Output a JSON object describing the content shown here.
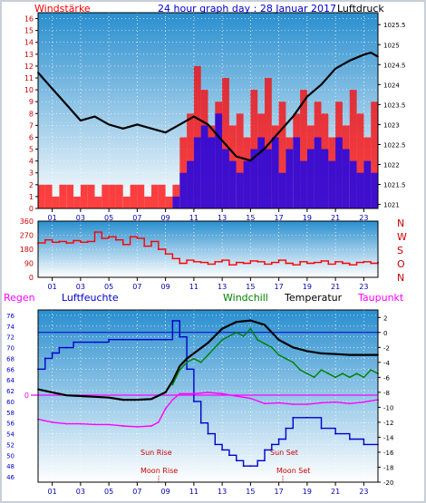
{
  "chart_data": [
    {
      "type": "line",
      "title": "24 hour graph day : 28 Januar 2017",
      "left_label": "Windstärke",
      "right_label": "Luftdruck",
      "x_ticks": [
        "01",
        "03",
        "05",
        "07",
        "09",
        "11",
        "13",
        "15",
        "17",
        "19",
        "21",
        "23"
      ],
      "y_left_ticks": [
        "0",
        "1",
        "2",
        "3",
        "4",
        "5",
        "6",
        "7",
        "8",
        "9",
        "10",
        "11",
        "12",
        "13",
        "14",
        "15",
        "16"
      ],
      "y_right_ticks": [
        "1021",
        "1021.5",
        "1022",
        "1022.5",
        "1023",
        "1023.5",
        "1024",
        "1024.5",
        "1025",
        "1025.5"
      ],
      "ylim_left": [
        0,
        16.5
      ],
      "ylim_right": [
        1020.9,
        1025.8
      ],
      "series": [
        {
          "name": "Windstärke",
          "color": "#ff0000",
          "x": [
            0,
            0.5,
            1,
            1.5,
            2,
            2.5,
            3,
            3.5,
            4,
            4.5,
            5,
            5.5,
            6,
            6.5,
            7,
            7.5,
            8,
            8.5,
            9,
            9.5,
            10,
            10.5,
            11,
            11.5,
            12,
            12.5,
            13,
            13.5,
            14,
            14.5,
            15,
            15.5,
            16,
            16.5,
            17,
            17.5,
            18,
            18.5,
            19,
            19.5,
            20,
            20.5,
            21,
            21.5,
            22,
            22.5,
            23,
            23.5,
            24
          ],
          "y": [
            2,
            2,
            1,
            2,
            2,
            1,
            2,
            2,
            1,
            2,
            2,
            2,
            1,
            2,
            2,
            1,
            2,
            2,
            1,
            2,
            6,
            8,
            12,
            10,
            7,
            9,
            11,
            7,
            8,
            6,
            10,
            8,
            11,
            7,
            9,
            6,
            8,
            10,
            7,
            9,
            8,
            6,
            9,
            7,
            10,
            8,
            6,
            9,
            8
          ]
        },
        {
          "name": "Wind Böen",
          "color": "#0000ff",
          "x": [
            9.5,
            10,
            10.5,
            11,
            11.5,
            12,
            12.5,
            13,
            13.5,
            14,
            14.5,
            15,
            15.5,
            16,
            16.5,
            17,
            17.5,
            18,
            18.5,
            19,
            19.5,
            20,
            20.5,
            21,
            21.5,
            22,
            22.5,
            23,
            23.5,
            24
          ],
          "y": [
            1,
            3,
            4,
            6,
            7,
            6,
            8,
            5,
            4,
            3,
            4,
            5,
            6,
            5,
            6,
            3,
            5,
            6,
            4,
            5,
            6,
            5,
            4,
            6,
            5,
            4,
            3,
            4,
            3,
            4
          ]
        },
        {
          "name": "Luftdruck",
          "color": "#000000",
          "axis": "right",
          "x": [
            0,
            1,
            2,
            3,
            4,
            5,
            6,
            7,
            8,
            9,
            10,
            11,
            12,
            13,
            14,
            15,
            16,
            17,
            18,
            19,
            20,
            21,
            22,
            23,
            23.5,
            24
          ],
          "y": [
            1024.3,
            1023.9,
            1023.5,
            1023.1,
            1023.2,
            1023.0,
            1022.9,
            1023.0,
            1022.9,
            1022.8,
            1023.0,
            1023.2,
            1023.0,
            1022.6,
            1022.2,
            1022.1,
            1022.4,
            1022.8,
            1023.2,
            1023.7,
            1024.0,
            1024.4,
            1024.6,
            1024.75,
            1024.8,
            1024.7
          ]
        }
      ]
    },
    {
      "type": "line",
      "title": "",
      "x_ticks": [
        "01",
        "03",
        "05",
        "07",
        "09",
        "11",
        "13",
        "15",
        "17",
        "19",
        "21",
        "23"
      ],
      "y_ticks": [
        "0",
        "90",
        "180",
        "270",
        "360"
      ],
      "direction_labels": [
        "N",
        "W",
        "S",
        "O",
        "N"
      ],
      "ylim": [
        0,
        360
      ],
      "series": [
        {
          "name": "Windrichtung",
          "color": "#ff0000",
          "x": [
            0,
            0.5,
            1,
            1.5,
            2,
            2.5,
            3,
            3.5,
            4,
            4.5,
            5,
            5.5,
            6,
            6.5,
            7,
            7.5,
            8,
            8.5,
            9,
            9.5,
            10,
            10.5,
            11,
            11.5,
            12,
            12.5,
            13,
            13.5,
            14,
            14.5,
            15,
            15.5,
            16,
            16.5,
            17,
            17.5,
            18,
            18.5,
            19,
            19.5,
            20,
            20.5,
            21,
            21.5,
            22,
            22.5,
            23,
            23.5,
            24
          ],
          "y": [
            220,
            240,
            225,
            230,
            220,
            235,
            225,
            230,
            290,
            250,
            260,
            240,
            210,
            260,
            250,
            200,
            230,
            180,
            150,
            120,
            90,
            110,
            100,
            95,
            85,
            100,
            110,
            80,
            95,
            90,
            105,
            100,
            85,
            95,
            110,
            90,
            80,
            100,
            90,
            95,
            105,
            85,
            100,
            90,
            80,
            95,
            100,
            90,
            95
          ]
        }
      ]
    },
    {
      "type": "line",
      "title": "",
      "legend": [
        "Regen",
        "Luftfeuchte",
        "Windchill",
        "Temperatur",
        "Taupunkt"
      ],
      "legend_colors": [
        "#ff00ff",
        "#0000cc",
        "#008000",
        "#000000",
        "#ff00ff"
      ],
      "x_ticks": [
        "01",
        "03",
        "05",
        "07",
        "09",
        "11",
        "13",
        "15",
        "17",
        "19",
        "21",
        "23"
      ],
      "y_left_ticks": [
        "46",
        "48",
        "50",
        "52",
        "54",
        "56",
        "58",
        "60",
        "62",
        "64",
        "66",
        "68",
        "70",
        "72",
        "74",
        "76"
      ],
      "y_right_ticks": [
        "2",
        "0",
        "-2",
        "-4",
        "-6",
        "-8",
        "-10",
        "-12",
        "-14",
        "-16",
        "-18",
        "-20"
      ],
      "rain_tick": "0",
      "ylim_left": [
        45,
        77
      ],
      "ylim_right": [
        -20,
        3
      ],
      "annotations": [
        "Sun Rise",
        "Moon Rise",
        "Sun Set",
        "Moon Set"
      ],
      "series": [
        {
          "name": "Luftfeuchte",
          "color": "#0000cc",
          "axis": "left",
          "x": [
            0,
            0.5,
            1,
            1.5,
            2,
            2.5,
            3,
            4,
            5,
            6,
            7,
            8,
            9,
            9.5,
            10,
            10.5,
            11,
            11.5,
            12,
            12.5,
            13,
            13.5,
            14,
            14.5,
            15,
            15.5,
            16,
            16.5,
            17,
            17.5,
            18,
            19,
            20,
            21,
            22,
            23,
            24
          ],
          "y": [
            66,
            68,
            69,
            70,
            70,
            71,
            71,
            71,
            71.5,
            71.5,
            71.5,
            71.5,
            71.5,
            75,
            72,
            66,
            60,
            56,
            54,
            52,
            51,
            50,
            49,
            48,
            48,
            49,
            51,
            52,
            53,
            55,
            57,
            57,
            55,
            54,
            53,
            52,
            52
          ]
        },
        {
          "name": "Temperatur",
          "color": "#000000",
          "axis": "right",
          "x": [
            0,
            1,
            2,
            3,
            4,
            5,
            6,
            7,
            8,
            9,
            9.5,
            10,
            10.5,
            11,
            12,
            13,
            14,
            15,
            16,
            17,
            18,
            19,
            20,
            21,
            22,
            23,
            24
          ],
          "y": [
            -7.6,
            -8,
            -8.4,
            -8.5,
            -8.6,
            -8.7,
            -9,
            -9,
            -8.9,
            -8,
            -6.5,
            -4.5,
            -3.5,
            -2.8,
            -1.4,
            0.5,
            1.4,
            1.6,
            1.0,
            -1.0,
            -2.0,
            -2.5,
            -2.8,
            -2.9,
            -3.0,
            -3.0,
            -3.0
          ]
        },
        {
          "name": "Windchill",
          "color": "#008000",
          "axis": "right",
          "x": [
            9.5,
            10,
            10.5,
            11,
            11.5,
            12,
            12.5,
            13,
            13.5,
            14,
            14.5,
            15,
            15.5,
            16,
            16.5,
            17,
            17.5,
            18,
            18.5,
            19,
            19.5,
            20,
            20.5,
            21,
            21.5,
            22,
            22.5,
            23,
            23.5,
            24
          ],
          "y": [
            -7,
            -5,
            -4,
            -3.5,
            -4,
            -3,
            -2,
            -1,
            -0.5,
            0,
            -0.5,
            0.5,
            -1,
            -1.5,
            -2,
            -3,
            -3.5,
            -4,
            -5,
            -5.5,
            -6,
            -5,
            -5.5,
            -6,
            -5.5,
            -6,
            -5.5,
            -6,
            -5,
            -5.5
          ]
        },
        {
          "name": "Taupunkt",
          "color": "#ff00ff",
          "axis": "right",
          "x": [
            0,
            1,
            2,
            3,
            4,
            5,
            6,
            7,
            8,
            8.5,
            9,
            9.5,
            10,
            11,
            12,
            13,
            14,
            15,
            16,
            17,
            18,
            19,
            20,
            21,
            22,
            23,
            24
          ],
          "y": [
            -11.6,
            -12,
            -12.2,
            -12.2,
            -12.3,
            -12.3,
            -12.5,
            -12.6,
            -12.5,
            -12,
            -10.2,
            -9,
            -8.2,
            -8.2,
            -8.0,
            -8.2,
            -8.5,
            -8.8,
            -9.5,
            -9.4,
            -9.6,
            -9.6,
            -9.4,
            -9.3,
            -9.5,
            -9.3,
            -9.0
          ]
        }
      ]
    }
  ]
}
